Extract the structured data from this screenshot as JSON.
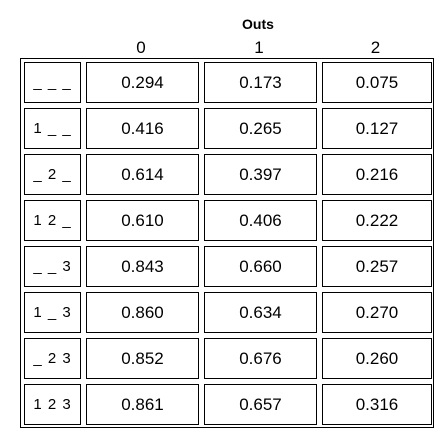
{
  "header": {
    "title": "Outs",
    "columns": [
      "0",
      "1",
      "2"
    ]
  },
  "table": {
    "rows": [
      [
        "_ _ _",
        "0.294",
        "0.173",
        "0.075"
      ],
      [
        "1 _ _",
        "0.416",
        "0.265",
        "0.127"
      ],
      [
        "_ 2 _",
        "0.614",
        "0.397",
        "0.216"
      ],
      [
        "1 2 _",
        "0.610",
        "0.406",
        "0.222"
      ],
      [
        "_ _ 3",
        "0.843",
        "0.660",
        "0.257"
      ],
      [
        "1 _ 3",
        "0.860",
        "0.634",
        "0.270"
      ],
      [
        "_ 2 3",
        "0.852",
        "0.676",
        "0.260"
      ],
      [
        "1 2 3",
        "0.861",
        "0.657",
        "0.316"
      ]
    ]
  }
}
